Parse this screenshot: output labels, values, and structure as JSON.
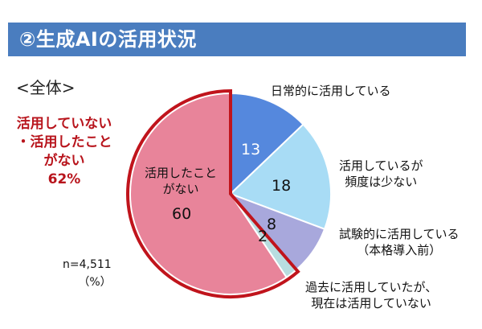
{
  "header": {
    "title": "②生成AIの活用状況"
  },
  "subset_label": "<全体>",
  "summary": {
    "line1": "活用していない",
    "line2": "・活用したこと",
    "line3": "がない",
    "line4": "62%"
  },
  "sample": {
    "n": "n=4,511",
    "unit": "（%）"
  },
  "colors": {
    "title_bar": "#4a7dbf",
    "summary_text": "#b8141c",
    "highlight_outline": "#c0141c"
  },
  "chart_data": {
    "type": "pie",
    "title": "②生成AIの活用状況",
    "subtitle": "<全体>",
    "unit": "%",
    "sample_size": "n=4,511",
    "categories": [
      "日常的に活用している",
      "活用しているが頻度は少ない",
      "試験的に活用している（本格導入前）",
      "過去に活用していたが、現在は活用していない",
      "活用したことがない"
    ],
    "values": [
      13,
      18,
      8,
      2,
      60
    ],
    "colors": [
      "#5588dd",
      "#a8dcf5",
      "#a8a8dc",
      "#b8dde0",
      "#e8849a"
    ],
    "start_angle": "12 o'clock, clockwise",
    "annotation": "活用していない・活用したことがない 62%",
    "highlighted_slices": [
      "過去に活用していたが、現在は活用していない",
      "活用したことがない"
    ]
  },
  "slice_labels": {
    "daily": "日常的に活用している",
    "infrequent_1": "活用しているが",
    "infrequent_2": "頻度は少ない",
    "trial_1": "試験的に活用している",
    "trial_2": "（本格導入前）",
    "past_1": "過去に活用していたが、",
    "past_2": "現在は活用していない",
    "never_1": "活用したこと",
    "never_2": "がない"
  },
  "slice_values": {
    "daily": "13",
    "infrequent": "18",
    "trial": "8",
    "past": "2",
    "never": "60"
  }
}
